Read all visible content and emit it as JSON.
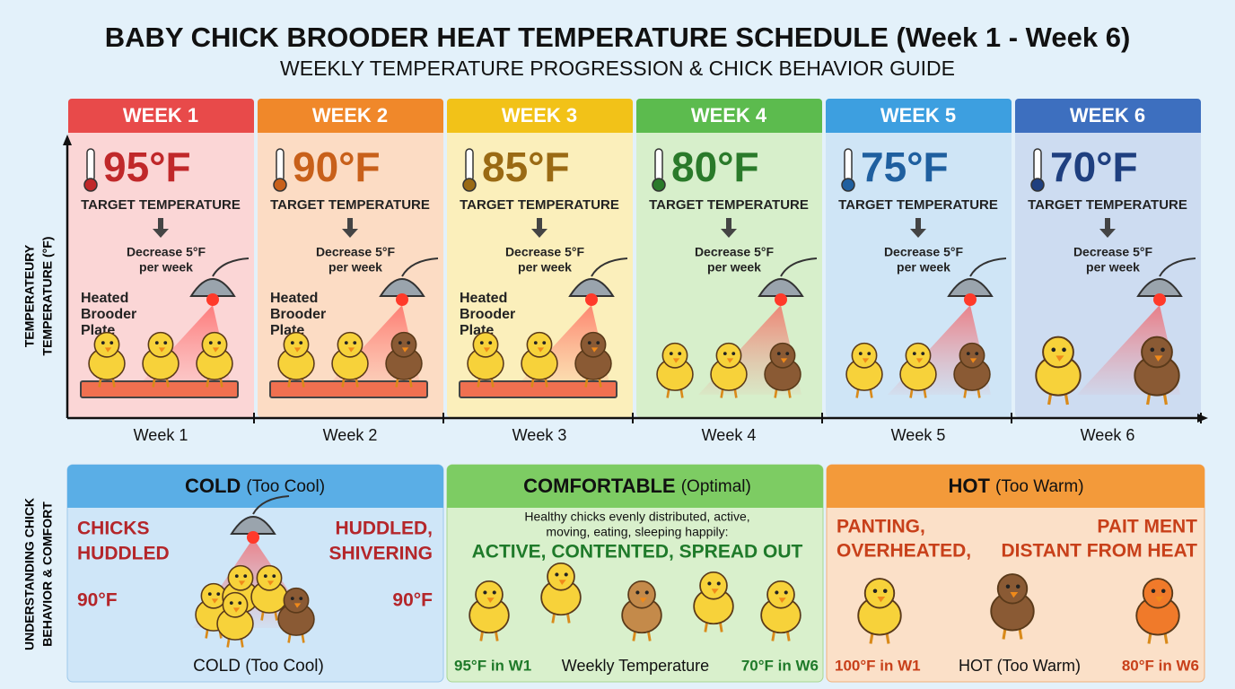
{
  "header": {
    "title": "BABY CHICK BROODER HEAT TEMPERATURE SCHEDULE (Week 1 - Week 6)",
    "subtitle": "WEEKLY TEMPERATURE PROGRESSION & CHICK BEHAVIOR GUIDE"
  },
  "axis": {
    "y_label": [
      "TEMPERATEURY",
      "TEMPERATURE (°F)"
    ]
  },
  "weeks": [
    {
      "label": "WEEK 1",
      "temperature": "95°F",
      "caption": "TARGET TEMPERATURE",
      "note": [
        "Decrease 5°F",
        "per week"
      ],
      "plate": [
        "Heated",
        "Brooder",
        "Plate"
      ],
      "x_label": "Week 1"
    },
    {
      "label": "WEEK 2",
      "temperature": "90°F",
      "caption": "TARGET TEMPERATURE",
      "note": [
        "Decrease 5°F",
        "per week"
      ],
      "plate": [
        "Heated",
        "Brooder",
        "Plate"
      ],
      "x_label": "Week 2"
    },
    {
      "label": "WEEK 3",
      "temperature": "85°F",
      "caption": "TARGET TEMPERATURE",
      "note": [
        "Decrease 5°F",
        "per week"
      ],
      "plate": [
        "Heated",
        "Brooder",
        "Plate"
      ],
      "x_label": "Week 3"
    },
    {
      "label": "WEEK 4",
      "temperature": "80°F",
      "caption": "TARGET TEMPERATURE",
      "note": [
        "Decrease 5°F",
        "per week"
      ],
      "x_label": "Week 4"
    },
    {
      "label": "WEEK 5",
      "temperature": "75°F",
      "caption": "TARGET TEMPERATURE",
      "note": [
        "Decrease 5°F",
        "per week"
      ],
      "x_label": "Week 5"
    },
    {
      "label": "WEEK 6",
      "temperature": "70°F",
      "caption": "TARGET TEMPERATURE",
      "note": [
        "Decrease 5°F",
        "per week"
      ],
      "x_label": "Week 6"
    }
  ],
  "behavior": {
    "side_label": [
      "UNDERSTANDING CHICK",
      "BEHAVIOR & COMFORT"
    ],
    "cold": {
      "title": "COLD",
      "title_note": "(Too Cool)",
      "left": [
        "CHICKS",
        "HUDDLED"
      ],
      "right": [
        "HUDDLED,",
        "SHIVERING"
      ],
      "left_temp": "90°F",
      "right_temp": "90°F",
      "footer": "COLD (Too Cool)"
    },
    "comfortable": {
      "title": "COMFORTABLE",
      "title_note": "(Optimal)",
      "description": [
        "Healthy chicks evenly distributed, active,",
        "moving, eating, sleeping happily:"
      ],
      "headline": "ACTIVE, CONTENTED, SPREAD OUT",
      "footer": [
        "95°F in W1",
        "Weekly Temperature",
        "70°F in W6"
      ]
    },
    "hot": {
      "title": "HOT",
      "title_note": "(Too Warm)",
      "left": [
        "PANTING,",
        "OVERHEATED,"
      ],
      "right": [
        "PAIT MENT",
        "DISTANT FROM HEAT"
      ],
      "footer": [
        "100°F in W1",
        "HOT (Too Warm)",
        "80°F in W6"
      ]
    }
  }
}
